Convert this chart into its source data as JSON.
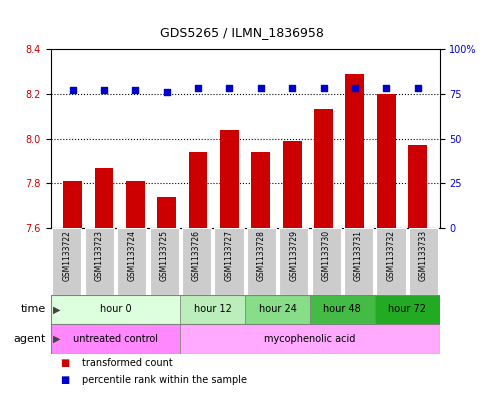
{
  "title": "GDS5265 / ILMN_1836958",
  "samples": [
    "GSM1133722",
    "GSM1133723",
    "GSM1133724",
    "GSM1133725",
    "GSM1133726",
    "GSM1133727",
    "GSM1133728",
    "GSM1133729",
    "GSM1133730",
    "GSM1133731",
    "GSM1133732",
    "GSM1133733"
  ],
  "bar_values": [
    7.81,
    7.87,
    7.81,
    7.74,
    7.94,
    8.04,
    7.94,
    7.99,
    8.13,
    8.29,
    8.2,
    7.97
  ],
  "percentile_values": [
    77,
    77,
    77,
    76,
    78,
    78,
    78,
    78,
    78,
    78,
    78,
    78
  ],
  "bar_color": "#cc0000",
  "percentile_color": "#0000cc",
  "ylim_left": [
    7.6,
    8.4
  ],
  "ylim_right": [
    0,
    100
  ],
  "yticks_left": [
    7.6,
    7.8,
    8.0,
    8.2,
    8.4
  ],
  "yticks_right": [
    0,
    25,
    50,
    75,
    100
  ],
  "ytick_labels_right": [
    "0",
    "25",
    "50",
    "75",
    "100%"
  ],
  "time_groups": [
    {
      "label": "hour 0",
      "start": 0,
      "end": 4,
      "color": "#ddffdd"
    },
    {
      "label": "hour 12",
      "start": 4,
      "end": 6,
      "color": "#bbeebb"
    },
    {
      "label": "hour 24",
      "start": 6,
      "end": 8,
      "color": "#88dd88"
    },
    {
      "label": "hour 48",
      "start": 8,
      "end": 10,
      "color": "#44bb44"
    },
    {
      "label": "hour 72",
      "start": 10,
      "end": 12,
      "color": "#22aa22"
    }
  ],
  "agent_groups": [
    {
      "label": "untreated control",
      "start": 0,
      "end": 4,
      "color": "#ff88ff"
    },
    {
      "label": "mycophenolic acid",
      "start": 4,
      "end": 12,
      "color": "#ffaaff"
    }
  ],
  "legend_items": [
    {
      "label": "transformed count",
      "color": "#cc0000"
    },
    {
      "label": "percentile rank within the sample",
      "color": "#0000cc"
    }
  ],
  "background_color": "#ffffff",
  "bar_width": 0.6,
  "grid_lines": [
    7.8,
    8.0,
    8.2
  ]
}
